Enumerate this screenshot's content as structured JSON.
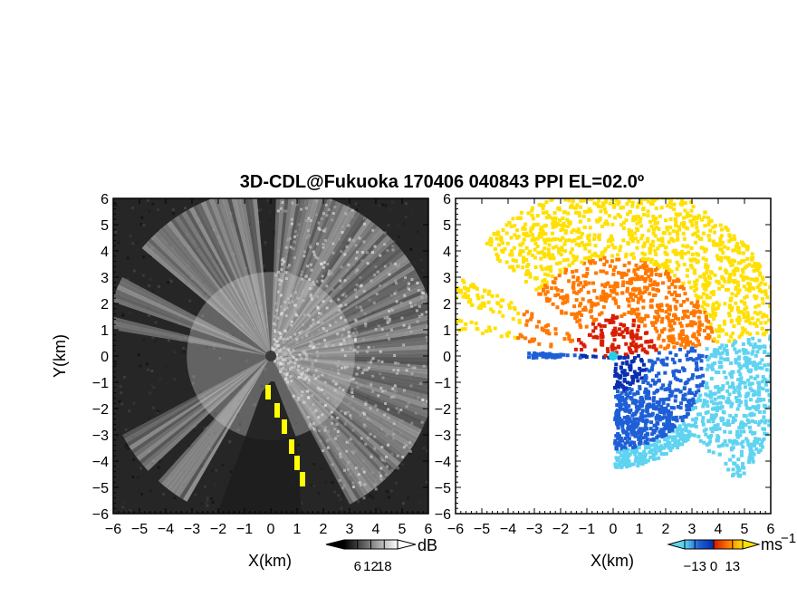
{
  "chart_data": [
    {
      "type": "heatmap",
      "title": "3D-CDL@Fukuoka 170406 040843 PPI EL=02.0º",
      "xlabel": "X(km)",
      "ylabel": "Y(km)",
      "xlim": [
        -6,
        6
      ],
      "ylim": [
        -6,
        6
      ],
      "xticks": [
        "−6",
        "−5",
        "−4",
        "−3",
        "−2",
        "−1",
        "0",
        "1",
        "2",
        "3",
        "4",
        "5",
        "6"
      ],
      "yticks": [
        "6",
        "5",
        "4",
        "3",
        "2",
        "1",
        "0",
        "−1",
        "−2",
        "−3",
        "−4",
        "−5",
        "−6"
      ],
      "colormap": "grayscale",
      "highlight_color": "#ffff00",
      "colorbar": {
        "unit": "dB",
        "ticks": [
          "6",
          "12",
          "18"
        ],
        "range": [
          0,
          24
        ],
        "colors": [
          "#000000",
          "#ffffff"
        ]
      }
    },
    {
      "type": "heatmap",
      "xlabel": "X(km)",
      "xlim": [
        -6,
        6
      ],
      "ylim": [
        -6,
        6
      ],
      "xticks": [
        "−6",
        "−5",
        "−4",
        "−3",
        "−2",
        "−1",
        "0",
        "1",
        "2",
        "3",
        "4",
        "5",
        "6"
      ],
      "yticks": [
        "6",
        "5",
        "4",
        "3",
        "2",
        "1",
        "0",
        "−1",
        "−2",
        "−3",
        "−4",
        "−5",
        "−6"
      ],
      "colormap": "blue-cyan-red-orange-yellow",
      "colorbar": {
        "unit": "ms",
        "unit_superscript": "−1",
        "ticks": [
          "−13",
          "0",
          "13"
        ],
        "range": [
          -20,
          20
        ],
        "colors": [
          "#5fd3f0",
          "#1e5fd6",
          "#0a2fb0",
          "#d81e00",
          "#ff7800",
          "#ffe000"
        ]
      }
    }
  ]
}
